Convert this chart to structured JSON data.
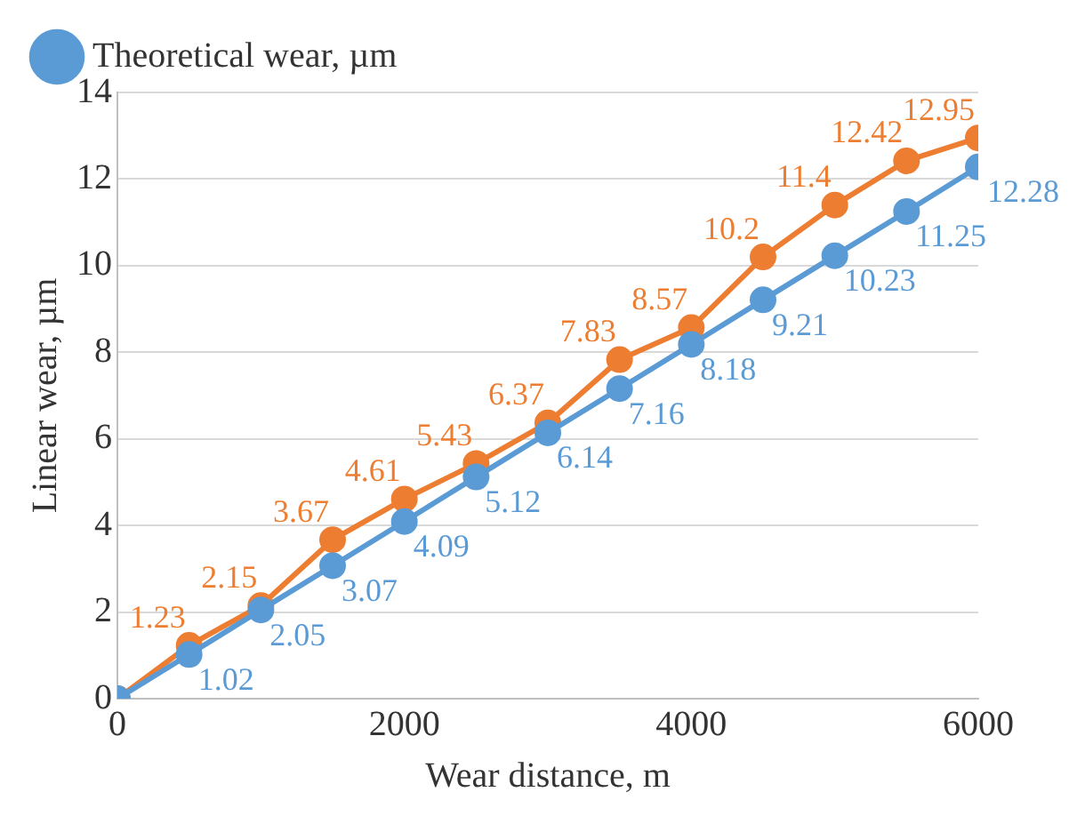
{
  "chart_data": {
    "type": "line",
    "xlabel": "Wear distance, m",
    "ylabel": "Linear wear, µm",
    "x": [
      0,
      500,
      1000,
      1500,
      2000,
      2500,
      3000,
      3500,
      4000,
      4500,
      5000,
      5500,
      6000
    ],
    "series": [
      {
        "name": "Theoretical wear, µm",
        "color": "#5b9bd5",
        "values": [
          0,
          1.02,
          2.05,
          3.07,
          4.09,
          5.12,
          6.14,
          7.16,
          8.18,
          9.21,
          10.23,
          11.25,
          12.28
        ],
        "value_labels": [
          null,
          "1.02",
          "2.05",
          "3.07",
          "4.09",
          "5.12",
          "6.14",
          "7.16",
          "8.18",
          "9.21",
          "10.23",
          "11.25",
          "12.28"
        ]
      },
      {
        "color": "#ed7d31",
        "values": [
          0,
          1.23,
          2.15,
          3.67,
          4.61,
          5.43,
          6.37,
          7.83,
          8.57,
          10.2,
          11.4,
          12.42,
          12.95
        ],
        "value_labels": [
          null,
          "1.23",
          "2.15",
          "3.67",
          "4.61",
          "5.43",
          "6.37",
          "7.83",
          "8.57",
          "10.2",
          "11.4",
          "12.42",
          "12.95"
        ]
      }
    ],
    "xlim": [
      0,
      6000
    ],
    "xticks": [
      0,
      2000,
      4000,
      6000
    ],
    "ylim": [
      0,
      14
    ],
    "yticks": [
      0,
      2,
      4,
      6,
      8,
      10,
      12,
      14
    ],
    "grid": "y",
    "legend": "top left",
    "marker": "circle",
    "line_style": "solid"
  }
}
